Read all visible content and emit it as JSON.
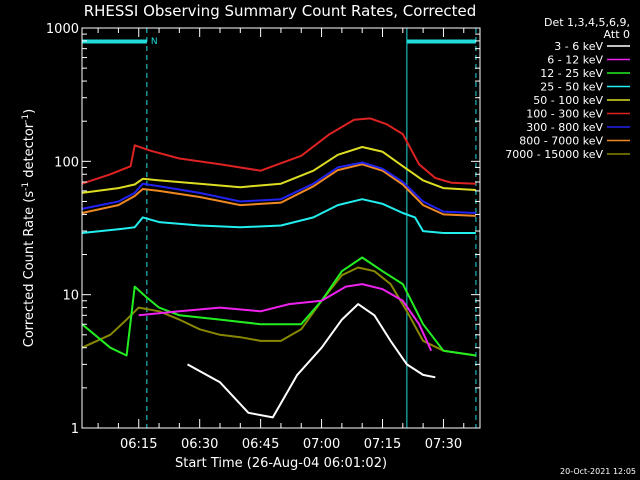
{
  "chart_data": {
    "type": "line",
    "title": "RHESSI Observing Summary Count Rates, Corrected",
    "xlabel": "Start Time (26-Aug-04 06:01:02)",
    "ylabel_main": "Corrected Count Rate (s",
    "ylabel_sup1": "-1",
    "ylabel_mid": " detector",
    "ylabel_sup2": "-1",
    "ylabel_end": ")",
    "yscale": "log",
    "xlim": [
      "06:01:02",
      "07:39:00"
    ],
    "ylim": [
      1,
      1000
    ],
    "x_ticks": [
      "06:15",
      "06:30",
      "06:45",
      "07:00",
      "07:15",
      "07:30"
    ],
    "y_ticks": [
      "1",
      "10",
      "100",
      "1000"
    ],
    "legend_header": [
      "Det 1,3,4,5,6,9,",
      "Att 0"
    ],
    "legend_position": "right",
    "footer_date": "20-Oct-2021 12:05",
    "night_marker_label": "N",
    "bars": {
      "color": "#22dddd",
      "segments": [
        [
          "06:01:02",
          "06:17:00"
        ],
        [
          "07:21:00",
          "07:38:00"
        ]
      ]
    },
    "vlines_solid": [
      "06:01:02",
      "07:21:00"
    ],
    "vlines_dashed": [
      "06:17:00",
      "07:38:00"
    ],
    "series": [
      {
        "name": "3 - 6 keV",
        "color": "#ffffff",
        "points": [
          [
            "06:27",
            3.0
          ],
          [
            "06:35",
            2.2
          ],
          [
            "06:42",
            1.3
          ],
          [
            "06:48",
            1.2
          ],
          [
            "06:54",
            2.5
          ],
          [
            "07:00",
            4.0
          ],
          [
            "07:05",
            6.5
          ],
          [
            "07:09",
            8.5
          ],
          [
            "07:13",
            7.0
          ],
          [
            "07:17",
            4.5
          ],
          [
            "07:21",
            3.0
          ],
          [
            "07:25",
            2.5
          ],
          [
            "07:28",
            2.4
          ]
        ]
      },
      {
        "name": "6 - 12 keV",
        "color": "#ee22ee",
        "points": [
          [
            "06:15",
            7.0
          ],
          [
            "06:25",
            7.5
          ],
          [
            "06:35",
            8.0
          ],
          [
            "06:45",
            7.5
          ],
          [
            "06:52",
            8.5
          ],
          [
            "07:00",
            9.0
          ],
          [
            "07:06",
            11.5
          ],
          [
            "07:10",
            12.0
          ],
          [
            "07:15",
            11.0
          ],
          [
            "07:20",
            9.0
          ],
          [
            "07:24",
            6.0
          ],
          [
            "07:27",
            3.8
          ]
        ]
      },
      {
        "name": "12 - 25 keV",
        "color": "#22ee22",
        "points": [
          [
            "06:01:02",
            6.0
          ],
          [
            "06:08",
            4.0
          ],
          [
            "06:12",
            3.5
          ],
          [
            "06:14",
            11.5
          ],
          [
            "06:17",
            9.5
          ],
          [
            "06:20",
            8.0
          ],
          [
            "06:25",
            7.0
          ],
          [
            "06:35",
            6.5
          ],
          [
            "06:45",
            6.0
          ],
          [
            "06:55",
            6.0
          ],
          [
            "07:00",
            9.0
          ],
          [
            "07:05",
            15.0
          ],
          [
            "07:10",
            19.0
          ],
          [
            "07:15",
            15.0
          ],
          [
            "07:20",
            12.0
          ],
          [
            "07:25",
            6.0
          ],
          [
            "07:30",
            3.8
          ],
          [
            "07:38",
            3.5
          ]
        ]
      },
      {
        "name": "25 - 50 keV",
        "color": "#22eeee",
        "points": [
          [
            "06:01:02",
            29
          ],
          [
            "06:10",
            31
          ],
          [
            "06:14",
            32
          ],
          [
            "06:16",
            38
          ],
          [
            "06:20",
            35
          ],
          [
            "06:30",
            33
          ],
          [
            "06:40",
            32
          ],
          [
            "06:50",
            33
          ],
          [
            "06:58",
            38
          ],
          [
            "07:04",
            47
          ],
          [
            "07:10",
            52
          ],
          [
            "07:15",
            48
          ],
          [
            "07:20",
            41
          ],
          [
            "07:23",
            38
          ],
          [
            "07:25",
            30
          ],
          [
            "07:30",
            29
          ],
          [
            "07:38",
            29
          ]
        ]
      },
      {
        "name": "50 - 100 keV",
        "color": "#dddd22",
        "points": [
          [
            "06:01:02",
            58
          ],
          [
            "06:10",
            63
          ],
          [
            "06:14",
            67
          ],
          [
            "06:16",
            74
          ],
          [
            "06:20",
            72
          ],
          [
            "06:30",
            68
          ],
          [
            "06:40",
            64
          ],
          [
            "06:50",
            68
          ],
          [
            "06:58",
            85
          ],
          [
            "07:04",
            112
          ],
          [
            "07:10",
            128
          ],
          [
            "07:15",
            118
          ],
          [
            "07:20",
            92
          ],
          [
            "07:25",
            72
          ],
          [
            "07:30",
            63
          ],
          [
            "07:38",
            61
          ]
        ]
      },
      {
        "name": "100 - 300 keV",
        "color": "#dd2222",
        "points": [
          [
            "06:01:02",
            68
          ],
          [
            "06:08",
            80
          ],
          [
            "06:13",
            92
          ],
          [
            "06:14",
            132
          ],
          [
            "06:18",
            120
          ],
          [
            "06:25",
            105
          ],
          [
            "06:35",
            95
          ],
          [
            "06:45",
            85
          ],
          [
            "06:55",
            110
          ],
          [
            "07:02",
            160
          ],
          [
            "07:08",
            205
          ],
          [
            "07:12",
            210
          ],
          [
            "07:16",
            190
          ],
          [
            "07:20",
            160
          ],
          [
            "07:24",
            95
          ],
          [
            "07:28",
            75
          ],
          [
            "07:32",
            69
          ],
          [
            "07:38",
            68
          ]
        ]
      },
      {
        "name": "300 - 800 keV",
        "color": "#2222ee",
        "points": [
          [
            "06:01:02",
            44
          ],
          [
            "06:10",
            50
          ],
          [
            "06:14",
            58
          ],
          [
            "06:16",
            68
          ],
          [
            "06:20",
            65
          ],
          [
            "06:30",
            58
          ],
          [
            "06:40",
            50
          ],
          [
            "06:50",
            52
          ],
          [
            "06:58",
            68
          ],
          [
            "07:04",
            90
          ],
          [
            "07:10",
            98
          ],
          [
            "07:15",
            88
          ],
          [
            "07:20",
            70
          ],
          [
            "07:25",
            50
          ],
          [
            "07:30",
            42
          ],
          [
            "07:38",
            41
          ]
        ]
      },
      {
        "name": "800 - 7000 keV",
        "color": "#ee8822",
        "points": [
          [
            "06:01:02",
            41
          ],
          [
            "06:10",
            47
          ],
          [
            "06:14",
            55
          ],
          [
            "06:16",
            62
          ],
          [
            "06:20",
            60
          ],
          [
            "06:30",
            54
          ],
          [
            "06:40",
            47
          ],
          [
            "06:50",
            49
          ],
          [
            "06:58",
            65
          ],
          [
            "07:04",
            86
          ],
          [
            "07:10",
            95
          ],
          [
            "07:15",
            85
          ],
          [
            "07:20",
            67
          ],
          [
            "07:25",
            47
          ],
          [
            "07:30",
            40
          ],
          [
            "07:38",
            39
          ]
        ]
      },
      {
        "name": "7000 - 15000 keV",
        "color": "#888800",
        "points": [
          [
            "06:01:02",
            4.0
          ],
          [
            "06:08",
            5.0
          ],
          [
            "06:12",
            6.5
          ],
          [
            "06:15",
            8.0
          ],
          [
            "06:20",
            7.5
          ],
          [
            "06:25",
            6.5
          ],
          [
            "06:30",
            5.5
          ],
          [
            "06:35",
            5.0
          ],
          [
            "06:40",
            4.8
          ],
          [
            "06:45",
            4.5
          ],
          [
            "06:50",
            4.5
          ],
          [
            "06:55",
            5.5
          ],
          [
            "07:00",
            9.0
          ],
          [
            "07:05",
            14.0
          ],
          [
            "07:09",
            16.0
          ],
          [
            "07:13",
            15.0
          ],
          [
            "07:17",
            12.0
          ],
          [
            "07:21",
            7.5
          ],
          [
            "07:25",
            4.5
          ],
          [
            "07:30",
            3.8
          ],
          [
            "07:38",
            3.5
          ]
        ]
      }
    ]
  }
}
